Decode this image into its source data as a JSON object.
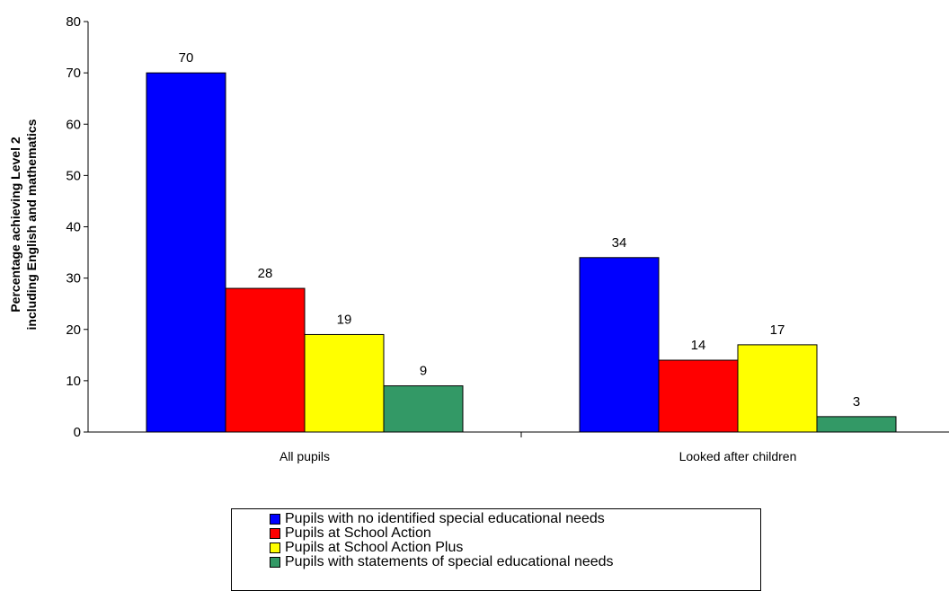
{
  "chart_data": {
    "type": "bar",
    "categories": [
      "All pupils",
      "Looked after children"
    ],
    "series": [
      {
        "name": "Pupils with no identified special educational needs",
        "values": [
          70,
          34
        ],
        "labels": [
          "70",
          "34"
        ],
        "color": "#0000ff"
      },
      {
        "name": "Pupils at School Action",
        "values": [
          28,
          14
        ],
        "labels": [
          "28",
          "14"
        ],
        "color": "#ff0000"
      },
      {
        "name": "Pupils at School Action Plus",
        "values": [
          19,
          17
        ],
        "labels": [
          "19",
          "17"
        ],
        "color": "#ffff00"
      },
      {
        "name": "Pupils with statements of special educational needs",
        "values": [
          9,
          3
        ],
        "labels": [
          "9",
          "3"
        ],
        "color": "#339966"
      }
    ],
    "ylabel_lines": [
      "Percentage achieving Level 2",
      "including English and mathematics"
    ],
    "ylim": [
      0,
      80
    ],
    "yticks": [
      "0",
      "10",
      "20",
      "30",
      "40",
      "50",
      "60",
      "70",
      "80"
    ],
    "legend_position": "bottom",
    "grid": false
  }
}
